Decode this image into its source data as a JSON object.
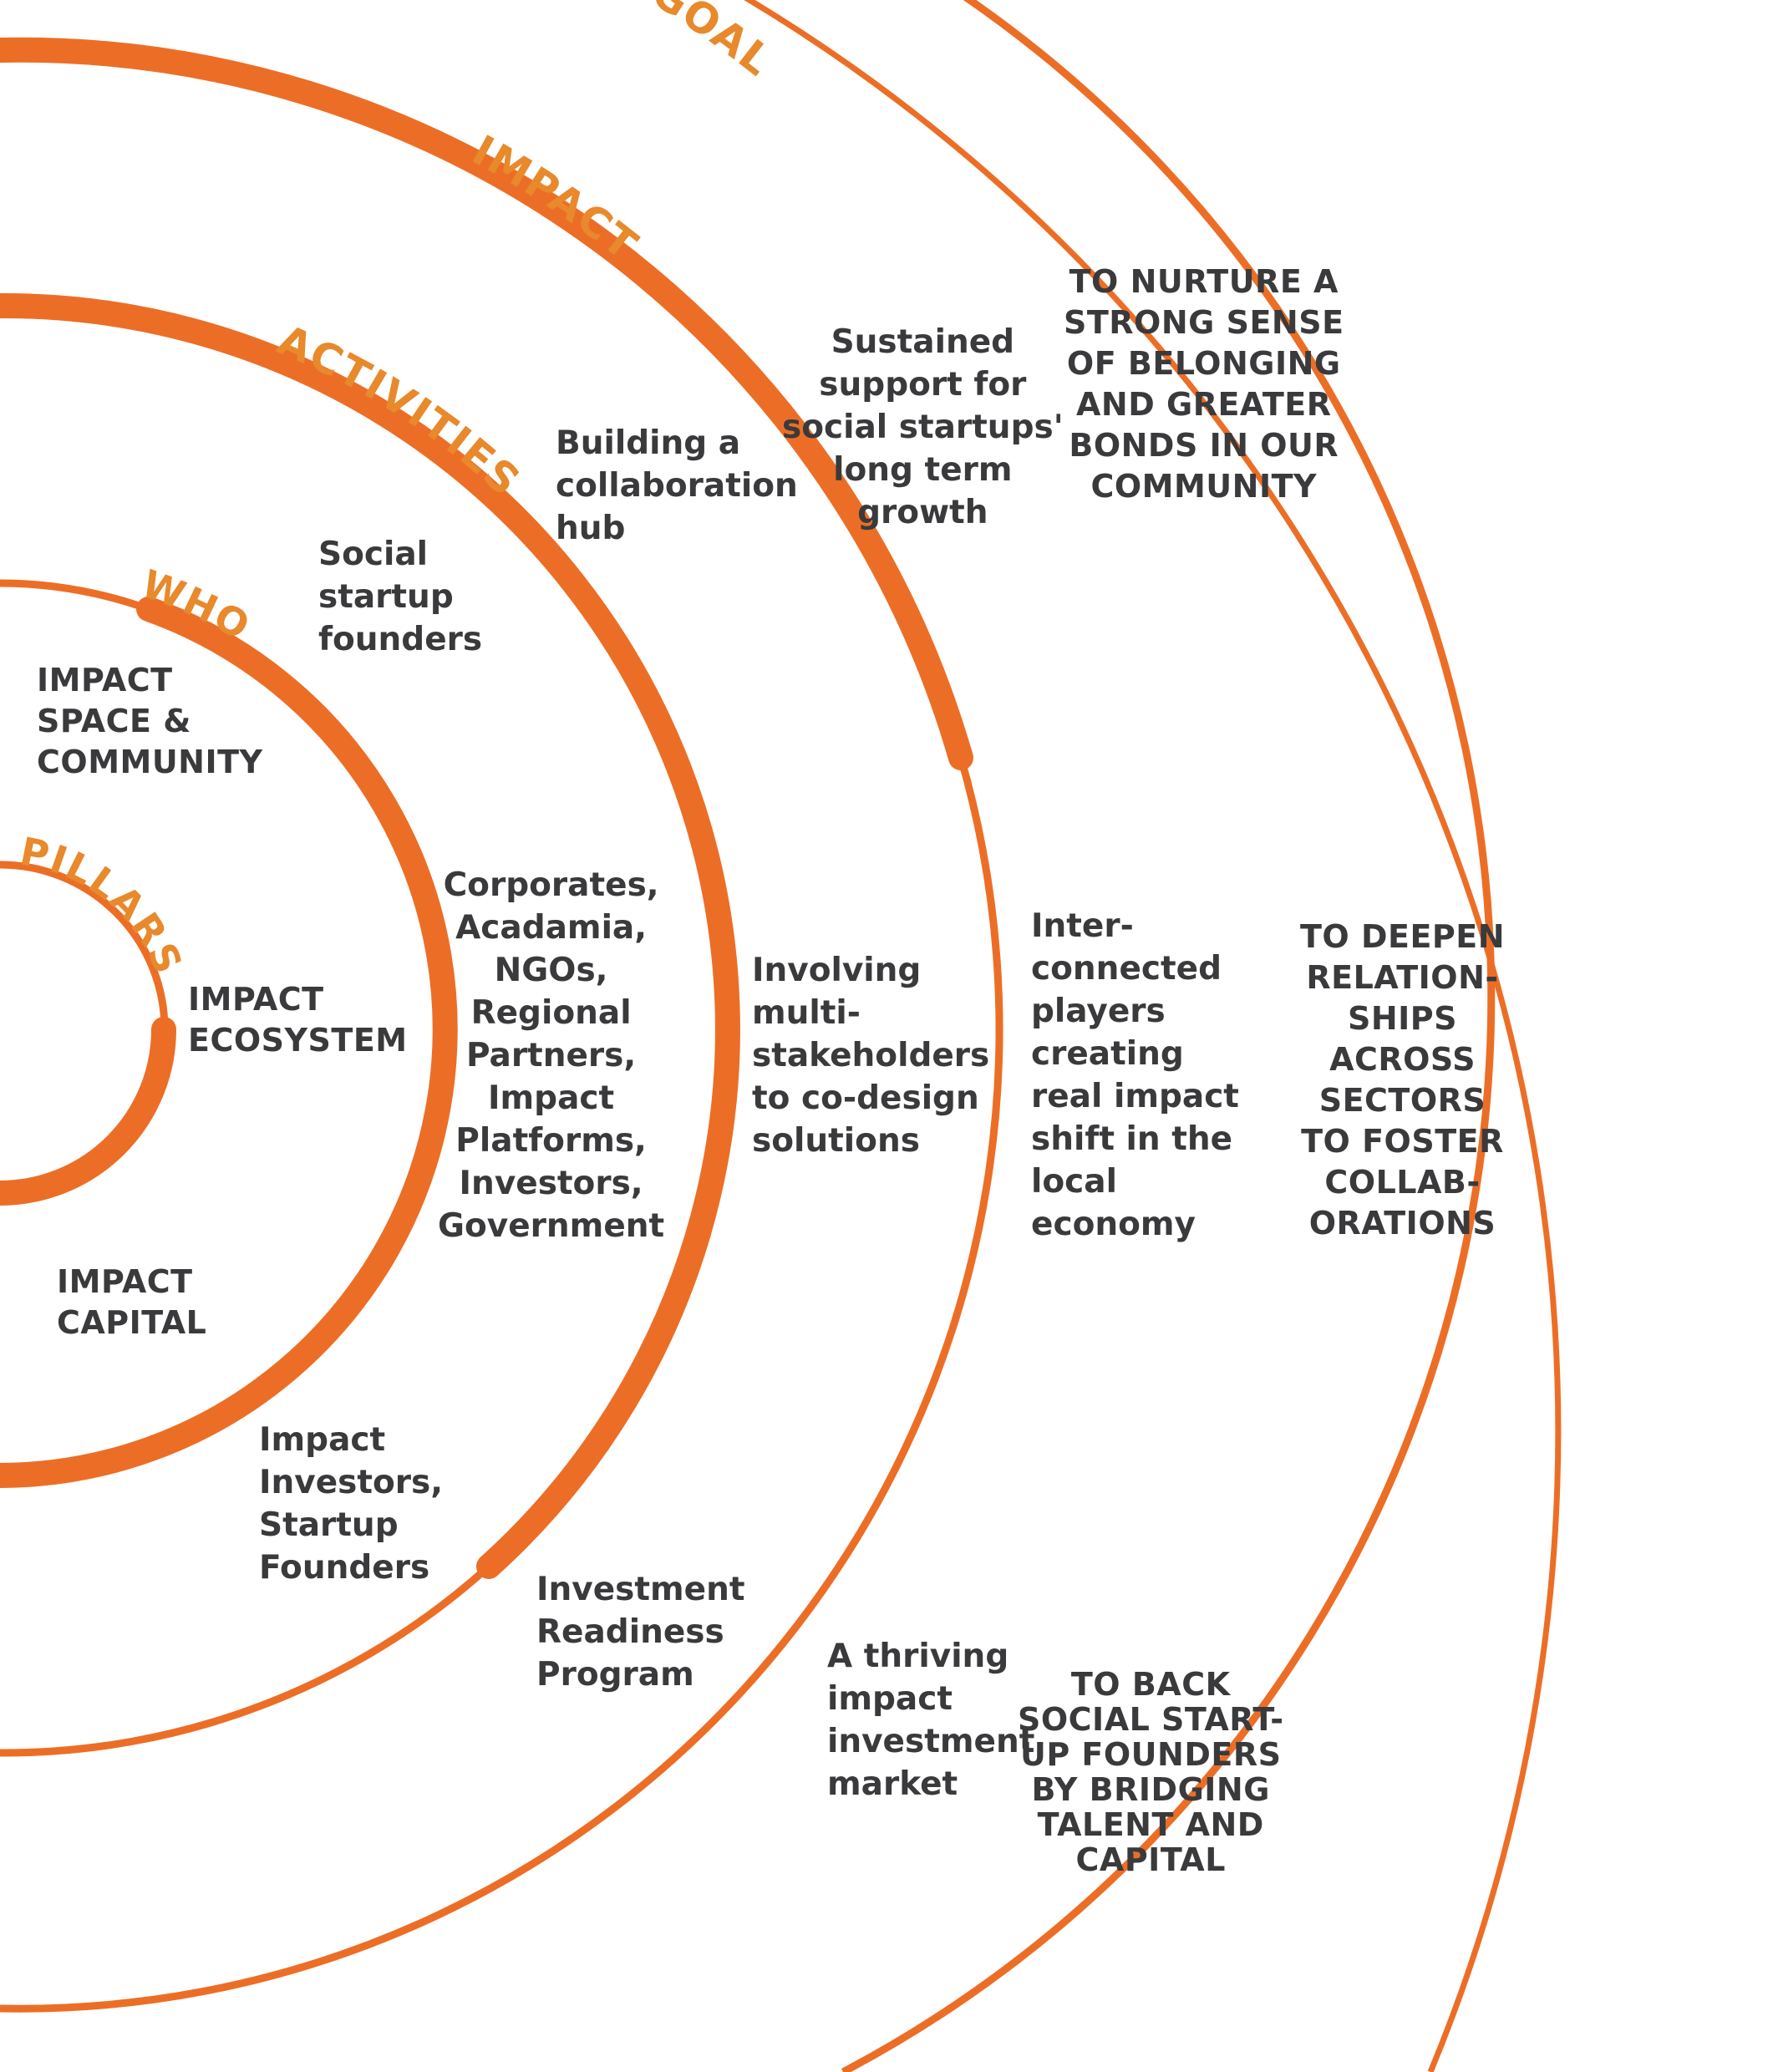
{
  "colors": {
    "ring": "#ec6e26",
    "label": "#e8892c",
    "text": "#3a3a3c"
  },
  "ring_labels": {
    "pillars": "PILLARS",
    "who": "WHO",
    "activities": "ACTIVITIES",
    "impact": "IMPACT",
    "goal": "GOAL"
  },
  "pillars": [
    {
      "name": "IMPACT\nSPACE &\nCOMMUNITY",
      "who": "Social\nstartup\nfounders",
      "activity": "Building a\ncollaboration\nhub",
      "impact": "Sustained\nsupport for\nsocial startups'\nlong term\ngrowth",
      "goal": "TO NURTURE A\nSTRONG SENSE\nOF BELONGING\nAND GREATER\nBONDS IN OUR\nCOMMUNITY"
    },
    {
      "name": "IMPACT\nECOSYSTEM",
      "who": "Corporates,\nAcadamia,\nNGOs,\nRegional\nPartners,\nImpact\nPlatforms,\nInvestors,\nGovernment",
      "activity": "Involving\nmulti-\nstakeholders\nto co-design\nsolutions",
      "impact": "Inter-\nconnected\nplayers\ncreating\nreal impact\nshift in the\nlocal\neconomy",
      "goal": "TO DEEPEN\nRELATION-\nSHIPS\nACROSS\nSECTORS\nTO FOSTER\nCOLLAB-\nORATIONS"
    },
    {
      "name": "IMPACT\nCAPITAL",
      "who": "Impact\nInvestors,\nStartup\nFounders",
      "activity": "Investment\nReadiness\nProgram",
      "impact": "A thriving\nimpact\ninvestment\nmarket",
      "goal": "TO BACK\nSOCIAL START-\nUP FOUNDERS\nBY BRIDGING\nTALENT AND\nCAPITAL"
    }
  ]
}
